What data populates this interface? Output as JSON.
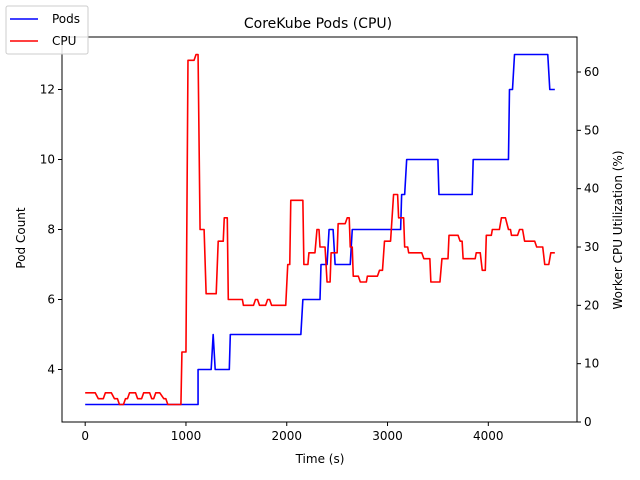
{
  "chart_data": {
    "type": "line",
    "title": "CoreKube Pods (CPU)",
    "xlabel": "Time (s)",
    "ylabel_left": "Pod Count",
    "ylabel_right": "Worker CPU Utilization (%)",
    "xlim": [
      -230,
      4880
    ],
    "ylim_left": [
      2.5,
      13.5
    ],
    "ylim_right": [
      0,
      66
    ],
    "x_ticks": [
      0,
      1000,
      2000,
      3000,
      4000
    ],
    "y_ticks_left": [
      4,
      6,
      8,
      10,
      12
    ],
    "y_ticks_right": [
      0,
      10,
      20,
      30,
      40,
      50,
      60
    ],
    "grid": false,
    "legend_position": "top-left",
    "colors": {
      "Pods": "#0000ff",
      "CPU": "#ff0000"
    },
    "series": [
      {
        "name": "Pods",
        "axis": "left",
        "points": [
          [
            0,
            3
          ],
          [
            1120,
            3
          ],
          [
            1120,
            4
          ],
          [
            1250,
            4
          ],
          [
            1270,
            5
          ],
          [
            1290,
            4
          ],
          [
            1430,
            4
          ],
          [
            1440,
            5
          ],
          [
            2140,
            5
          ],
          [
            2160,
            6
          ],
          [
            2330,
            6
          ],
          [
            2340,
            7
          ],
          [
            2400,
            7
          ],
          [
            2420,
            8
          ],
          [
            2460,
            8
          ],
          [
            2480,
            7
          ],
          [
            2630,
            7
          ],
          [
            2650,
            8
          ],
          [
            3130,
            8
          ],
          [
            3140,
            9
          ],
          [
            3170,
            9
          ],
          [
            3190,
            10
          ],
          [
            3500,
            10
          ],
          [
            3510,
            9
          ],
          [
            3840,
            9
          ],
          [
            3850,
            10
          ],
          [
            4200,
            10
          ],
          [
            4210,
            12
          ],
          [
            4240,
            12
          ],
          [
            4260,
            13
          ],
          [
            4590,
            13
          ],
          [
            4610,
            12
          ],
          [
            4660,
            12
          ]
        ]
      },
      {
        "name": "CPU",
        "axis": "right",
        "points": [
          [
            0,
            5
          ],
          [
            100,
            5
          ],
          [
            130,
            4
          ],
          [
            180,
            4
          ],
          [
            200,
            5
          ],
          [
            260,
            5
          ],
          [
            290,
            4
          ],
          [
            320,
            4
          ],
          [
            340,
            3
          ],
          [
            380,
            3
          ],
          [
            400,
            4
          ],
          [
            420,
            4
          ],
          [
            440,
            5
          ],
          [
            500,
            5
          ],
          [
            520,
            4
          ],
          [
            560,
            4
          ],
          [
            580,
            5
          ],
          [
            640,
            5
          ],
          [
            660,
            4
          ],
          [
            680,
            4
          ],
          [
            700,
            5
          ],
          [
            740,
            5
          ],
          [
            780,
            4
          ],
          [
            800,
            4
          ],
          [
            820,
            3
          ],
          [
            950,
            3
          ],
          [
            960,
            12
          ],
          [
            1000,
            12
          ],
          [
            1020,
            62
          ],
          [
            1080,
            62
          ],
          [
            1100,
            63
          ],
          [
            1120,
            63
          ],
          [
            1140,
            33
          ],
          [
            1180,
            33
          ],
          [
            1200,
            22
          ],
          [
            1300,
            22
          ],
          [
            1320,
            31
          ],
          [
            1370,
            31
          ],
          [
            1380,
            35
          ],
          [
            1410,
            35
          ],
          [
            1420,
            21
          ],
          [
            1560,
            21
          ],
          [
            1570,
            20
          ],
          [
            1670,
            20
          ],
          [
            1690,
            21
          ],
          [
            1710,
            21
          ],
          [
            1730,
            20
          ],
          [
            1790,
            20
          ],
          [
            1810,
            21
          ],
          [
            1830,
            21
          ],
          [
            1850,
            20
          ],
          [
            1990,
            20
          ],
          [
            2010,
            27
          ],
          [
            2030,
            27
          ],
          [
            2040,
            38
          ],
          [
            2160,
            38
          ],
          [
            2170,
            27
          ],
          [
            2210,
            27
          ],
          [
            2220,
            29
          ],
          [
            2280,
            29
          ],
          [
            2300,
            33
          ],
          [
            2320,
            33
          ],
          [
            2330,
            30
          ],
          [
            2380,
            30
          ],
          [
            2400,
            24
          ],
          [
            2430,
            24
          ],
          [
            2440,
            29
          ],
          [
            2500,
            29
          ],
          [
            2510,
            34
          ],
          [
            2580,
            34
          ],
          [
            2600,
            35
          ],
          [
            2620,
            35
          ],
          [
            2630,
            30
          ],
          [
            2650,
            30
          ],
          [
            2660,
            25
          ],
          [
            2710,
            25
          ],
          [
            2730,
            24
          ],
          [
            2790,
            24
          ],
          [
            2800,
            25
          ],
          [
            2900,
            25
          ],
          [
            2920,
            26
          ],
          [
            2950,
            26
          ],
          [
            2970,
            31
          ],
          [
            3030,
            31
          ],
          [
            3060,
            39
          ],
          [
            3100,
            39
          ],
          [
            3110,
            35
          ],
          [
            3160,
            35
          ],
          [
            3170,
            30
          ],
          [
            3200,
            30
          ],
          [
            3210,
            29
          ],
          [
            3340,
            29
          ],
          [
            3360,
            28
          ],
          [
            3420,
            28
          ],
          [
            3430,
            24
          ],
          [
            3520,
            24
          ],
          [
            3540,
            28
          ],
          [
            3600,
            28
          ],
          [
            3610,
            32
          ],
          [
            3700,
            32
          ],
          [
            3720,
            31
          ],
          [
            3740,
            31
          ],
          [
            3750,
            28
          ],
          [
            3820,
            28
          ],
          [
            3830,
            28
          ],
          [
            3870,
            28
          ],
          [
            3880,
            29
          ],
          [
            3920,
            29
          ],
          [
            3940,
            26
          ],
          [
            3970,
            26
          ],
          [
            3980,
            32
          ],
          [
            4030,
            32
          ],
          [
            4040,
            33
          ],
          [
            4110,
            33
          ],
          [
            4130,
            35
          ],
          [
            4170,
            35
          ],
          [
            4200,
            33
          ],
          [
            4220,
            33
          ],
          [
            4230,
            32
          ],
          [
            4290,
            32
          ],
          [
            4310,
            33
          ],
          [
            4340,
            33
          ],
          [
            4360,
            31
          ],
          [
            4460,
            31
          ],
          [
            4480,
            30
          ],
          [
            4540,
            30
          ],
          [
            4560,
            27
          ],
          [
            4600,
            27
          ],
          [
            4620,
            29
          ],
          [
            4660,
            29
          ]
        ]
      }
    ]
  }
}
